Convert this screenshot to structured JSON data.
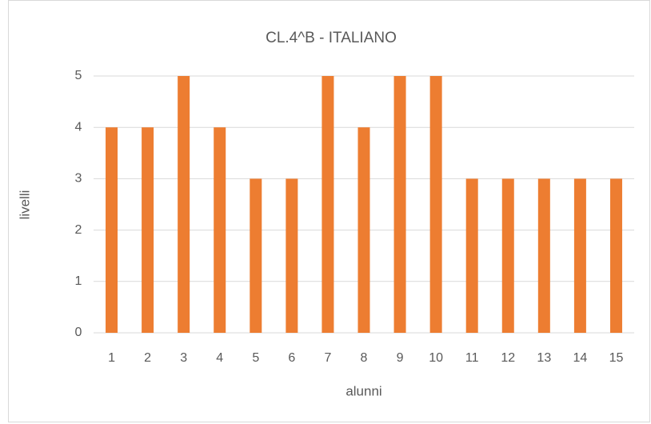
{
  "chart_data": {
    "type": "bar",
    "title": "CL.4^B - ITALIANO",
    "x_label": "alunni",
    "y_label": "livelli",
    "categories": [
      "1",
      "2",
      "3",
      "4",
      "5",
      "6",
      "7",
      "8",
      "9",
      "10",
      "11",
      "12",
      "13",
      "14",
      "15"
    ],
    "values": [
      4,
      4,
      5,
      4,
      3,
      3,
      5,
      4,
      5,
      5,
      3,
      3,
      3,
      3,
      3
    ],
    "color": "#ed7d31",
    "ylim": [
      0,
      5
    ],
    "yticks": [
      0,
      1,
      2,
      3,
      4,
      5
    ],
    "grid": true
  }
}
